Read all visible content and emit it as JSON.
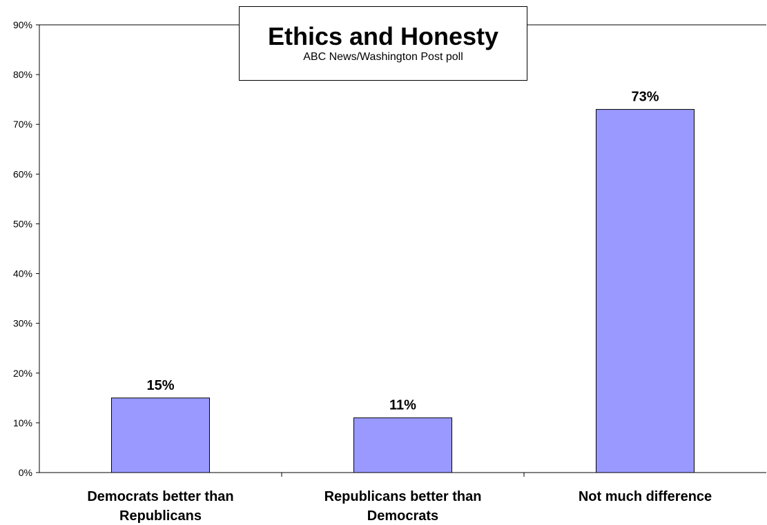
{
  "chart_data": {
    "type": "bar",
    "title": "Ethics and Honesty",
    "subtitle": "ABC News/Washington Post poll",
    "categories": [
      [
        "Democrats better than",
        "Republicans"
      ],
      [
        "Republicans better than",
        "Democrats"
      ],
      [
        "Not much difference"
      ]
    ],
    "values": [
      15,
      11,
      73
    ],
    "value_labels": [
      "15%",
      "11%",
      "73%"
    ],
    "ylim": [
      0,
      90
    ],
    "yticks": [
      0,
      10,
      20,
      30,
      40,
      50,
      60,
      70,
      80,
      90
    ],
    "ytick_labels": [
      "0%",
      "10%",
      "20%",
      "30%",
      "40%",
      "50%",
      "60%",
      "70%",
      "80%",
      "90%"
    ],
    "grid": false,
    "legend": "none",
    "bar_color": "#9999ff"
  }
}
